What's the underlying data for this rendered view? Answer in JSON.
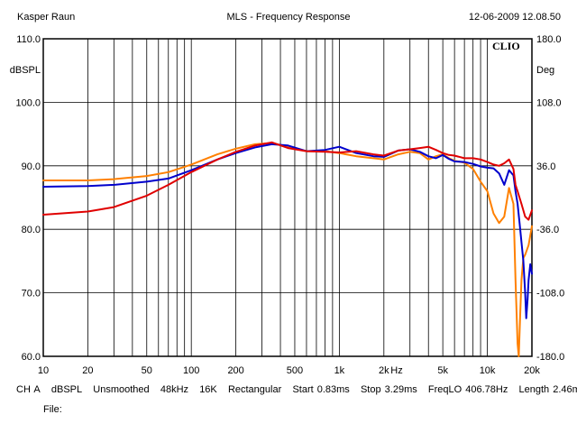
{
  "header": {
    "author": "Kasper Raun",
    "title": "MLS - Frequency Response",
    "timestamp": "12-06-2009 12.08.50"
  },
  "brand": "CLIO",
  "settings_line": {
    "channel": "CH A",
    "unit": "dBSPL",
    "smoothing": "Unsmoothed",
    "sample_rate": "48kHz",
    "size": "16K",
    "window": "Rectangular",
    "start": "Start 0.83ms",
    "stop": "Stop 3.29ms",
    "freqlo": "FreqLO 406.78Hz",
    "length": "Length 2.46ms"
  },
  "file_label": "File:",
  "colors": {
    "red": "#e00000",
    "blue": "#0000cc",
    "orange": "#ff8000",
    "grid": "#000000"
  },
  "chart_data": {
    "type": "line",
    "title": "MLS - Frequency Response",
    "xlabel": "Hz",
    "ylabel": "dBSPL",
    "y2label": "Deg",
    "xscale": "log",
    "xlim": [
      10,
      20000
    ],
    "ylim": [
      60,
      110
    ],
    "y2lim": [
      -180,
      180
    ],
    "grid": true,
    "x_ticks": [
      {
        "value": 10,
        "label": "10"
      },
      {
        "value": 20,
        "label": "20"
      },
      {
        "value": 50,
        "label": "50"
      },
      {
        "value": 100,
        "label": "100"
      },
      {
        "value": 200,
        "label": "200"
      },
      {
        "value": 500,
        "label": "500"
      },
      {
        "value": 1000,
        "label": "1k"
      },
      {
        "value": 2000,
        "label": "2k"
      },
      {
        "value": 5000,
        "label": "5k"
      },
      {
        "value": 10000,
        "label": "10k"
      },
      {
        "value": 20000,
        "label": "20k"
      }
    ],
    "y_ticks": [
      {
        "value": 110,
        "label": "110.0"
      },
      {
        "value": 100,
        "label": "100.0"
      },
      {
        "value": 90,
        "label": "90.0"
      },
      {
        "value": 80,
        "label": "80.0"
      },
      {
        "value": 70,
        "label": "70.0"
      },
      {
        "value": 60,
        "label": "60.0"
      }
    ],
    "y2_ticks": [
      {
        "value": 180,
        "label": "180.0"
      },
      {
        "value": 108,
        "label": "108.0"
      },
      {
        "value": 36,
        "label": "36.0"
      },
      {
        "value": -36,
        "label": "-36.0"
      },
      {
        "value": -108,
        "label": "-108.0"
      },
      {
        "value": -180,
        "label": "-180.0"
      }
    ],
    "series": [
      {
        "color": "#ff8000",
        "x": [
          10,
          20,
          30,
          50,
          70,
          100,
          150,
          200,
          270,
          350,
          450,
          600,
          800,
          1000,
          1300,
          1700,
          2000,
          2500,
          3000,
          3500,
          4000,
          4500,
          5000,
          5500,
          6000,
          7000,
          8000,
          9000,
          10000,
          11000,
          12000,
          13000,
          14000,
          15000,
          15500,
          16000,
          16300,
          16700,
          17000,
          17500,
          18000,
          19000,
          20000
        ],
        "y": [
          87.7,
          87.7,
          87.9,
          88.4,
          89.0,
          90.2,
          91.8,
          92.7,
          93.4,
          93.6,
          93.0,
          92.3,
          92.3,
          92.0,
          91.5,
          91.2,
          91.0,
          91.8,
          92.2,
          92.0,
          91.0,
          91.5,
          91.8,
          91.2,
          90.8,
          90.5,
          89.5,
          87.5,
          86.0,
          82.5,
          81.0,
          82.0,
          86.5,
          84.0,
          72.0,
          62.0,
          60.0,
          67.0,
          72.0,
          75.5,
          76.0,
          77.5,
          80.5
        ]
      },
      {
        "color": "#0000cc",
        "x": [
          10,
          20,
          30,
          50,
          70,
          100,
          150,
          200,
          270,
          350,
          450,
          600,
          800,
          1000,
          1300,
          1700,
          2000,
          2500,
          3000,
          3500,
          4000,
          4500,
          5000,
          5500,
          6000,
          7000,
          8000,
          9000,
          10000,
          11000,
          12000,
          13000,
          14000,
          15000,
          15500,
          16000,
          16500,
          17000,
          17500,
          18000,
          18300,
          18700,
          19000,
          19500,
          20000
        ],
        "y": [
          86.7,
          86.8,
          87.0,
          87.5,
          88.0,
          89.3,
          91.0,
          92.0,
          92.9,
          93.4,
          93.2,
          92.3,
          92.5,
          93.0,
          92.0,
          91.5,
          91.4,
          92.4,
          92.6,
          92.2,
          91.5,
          91.2,
          91.7,
          91.1,
          90.7,
          90.6,
          90.3,
          89.9,
          89.7,
          89.6,
          88.8,
          87.0,
          89.3,
          88.5,
          86.0,
          84.0,
          81.0,
          78.0,
          75.0,
          70.0,
          66.0,
          69.0,
          72.0,
          74.5,
          73.0
        ]
      },
      {
        "color": "#e00000",
        "x": [
          10,
          20,
          30,
          50,
          70,
          100,
          150,
          200,
          270,
          350,
          450,
          600,
          800,
          1000,
          1300,
          1700,
          2000,
          2500,
          3000,
          3500,
          4000,
          4500,
          5000,
          5500,
          6000,
          7000,
          8000,
          9000,
          10000,
          11000,
          12000,
          13000,
          14000,
          15000,
          15500,
          16000,
          17000,
          18000,
          19000,
          20000
        ],
        "y": [
          82.3,
          82.8,
          83.5,
          85.3,
          87.0,
          89.0,
          91.0,
          92.2,
          93.2,
          93.7,
          92.8,
          92.3,
          92.2,
          92.1,
          92.3,
          91.8,
          91.6,
          92.4,
          92.6,
          92.8,
          93.0,
          92.5,
          92.0,
          91.7,
          91.6,
          91.2,
          91.2,
          91.0,
          90.6,
          90.2,
          90.0,
          90.4,
          91.0,
          89.5,
          87.0,
          86.0,
          84.0,
          82.0,
          81.5,
          83.0
        ]
      }
    ]
  }
}
